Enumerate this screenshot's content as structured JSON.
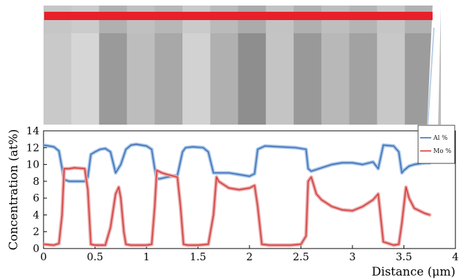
{
  "micrograph": {
    "description_icon": "stem-micrograph",
    "band_colors": [
      "#c9c9c9",
      "#d6d6d6",
      "#9a9a9a",
      "#bdbdbd",
      "#a8a8a8",
      "#d2d2d2",
      "#b0b0b0",
      "#8e8e8e",
      "#c4c4c4",
      "#999999",
      "#b8b8b8",
      "#a2a2a2",
      "#c8c8c8",
      "#9c9c9c"
    ],
    "scan_line_color": "#e8202a"
  },
  "chart_data": {
    "type": "line",
    "xlabel": "Distance (μm)",
    "ylabel": "Concentration (at%)",
    "xlim": [
      0,
      4
    ],
    "ylim": [
      0,
      14
    ],
    "xticks": [
      0,
      0.5,
      1,
      1.5,
      2,
      2.5,
      3,
      3.5,
      4
    ],
    "xtick_labels": [
      "0",
      "0.5",
      "1",
      "1.5",
      "2",
      "2.5",
      "3",
      "3.5",
      "4"
    ],
    "yticks": [
      0,
      2,
      4,
      6,
      8,
      10,
      12,
      14
    ],
    "ytick_labels": [
      "0",
      "2",
      "4",
      "6",
      "8",
      "10",
      "12",
      "14"
    ],
    "legend_position": "top-right",
    "series": [
      {
        "name": "Al %",
        "color": "#2f5fa8",
        "raw_color": "#9dbfe6",
        "x": [
          0.0,
          0.1,
          0.15,
          0.2,
          0.25,
          0.3,
          0.4,
          0.43,
          0.46,
          0.5,
          0.55,
          0.6,
          0.65,
          0.7,
          0.75,
          0.8,
          0.85,
          0.9,
          0.95,
          1.0,
          1.05,
          1.08,
          1.1,
          1.13,
          1.2,
          1.3,
          1.35,
          1.38,
          1.45,
          1.55,
          1.6,
          1.65,
          1.7,
          1.8,
          1.9,
          2.0,
          2.05,
          2.08,
          2.15,
          2.3,
          2.45,
          2.55,
          2.57,
          2.6,
          2.7,
          2.8,
          2.9,
          3.0,
          3.1,
          3.2,
          3.25,
          3.3,
          3.4,
          3.45,
          3.48,
          3.5,
          3.55,
          3.6,
          3.7,
          3.75
        ],
        "values": [
          12.3,
          12.1,
          11.6,
          8.2,
          8.0,
          8.0,
          8.0,
          8.5,
          11.2,
          11.5,
          11.8,
          11.9,
          11.5,
          9.0,
          10.0,
          11.8,
          12.3,
          12.4,
          12.3,
          12.2,
          11.8,
          9.5,
          8.3,
          8.3,
          8.5,
          8.7,
          11.5,
          12.0,
          12.1,
          12.0,
          11.5,
          9.0,
          9.0,
          9.0,
          8.8,
          8.6,
          8.9,
          11.8,
          12.2,
          12.1,
          12.0,
          11.8,
          9.5,
          9.2,
          9.6,
          10.0,
          10.2,
          10.2,
          10.0,
          10.3,
          9.5,
          12.3,
          12.2,
          11.5,
          9.0,
          9.3,
          9.8,
          10.0,
          10.2,
          10.2
        ]
      },
      {
        "name": "Mo %",
        "color": "#cc2b2b",
        "raw_color": "#eaa1a1",
        "x": [
          0.0,
          0.1,
          0.15,
          0.18,
          0.2,
          0.25,
          0.3,
          0.4,
          0.43,
          0.46,
          0.5,
          0.6,
          0.65,
          0.7,
          0.73,
          0.75,
          0.78,
          0.8,
          0.85,
          0.9,
          1.0,
          1.05,
          1.08,
          1.1,
          1.15,
          1.2,
          1.3,
          1.33,
          1.36,
          1.4,
          1.5,
          1.6,
          1.65,
          1.68,
          1.7,
          1.8,
          1.9,
          2.0,
          2.05,
          2.08,
          2.12,
          2.2,
          2.4,
          2.5,
          2.55,
          2.57,
          2.6,
          2.65,
          2.7,
          2.8,
          2.9,
          3.0,
          3.1,
          3.2,
          3.25,
          3.3,
          3.4,
          3.45,
          3.48,
          3.52,
          3.55,
          3.6,
          3.65,
          3.7,
          3.75
        ],
        "values": [
          0.5,
          0.4,
          0.6,
          4.0,
          9.5,
          9.5,
          9.6,
          9.5,
          7.0,
          0.5,
          0.4,
          0.4,
          2.5,
          6.5,
          7.3,
          6.0,
          2.0,
          0.5,
          0.4,
          0.4,
          0.4,
          0.5,
          5.0,
          9.3,
          9.0,
          8.8,
          8.5,
          5.0,
          0.5,
          0.4,
          0.4,
          0.5,
          4.0,
          8.5,
          8.0,
          7.2,
          7.0,
          7.2,
          7.5,
          5.0,
          0.5,
          0.4,
          0.4,
          0.5,
          1.5,
          8.0,
          8.5,
          6.5,
          5.8,
          5.0,
          4.6,
          4.5,
          5.0,
          5.8,
          6.5,
          0.8,
          0.4,
          0.5,
          3.0,
          7.3,
          6.0,
          4.8,
          4.5,
          4.2,
          4.0
        ]
      }
    ]
  }
}
